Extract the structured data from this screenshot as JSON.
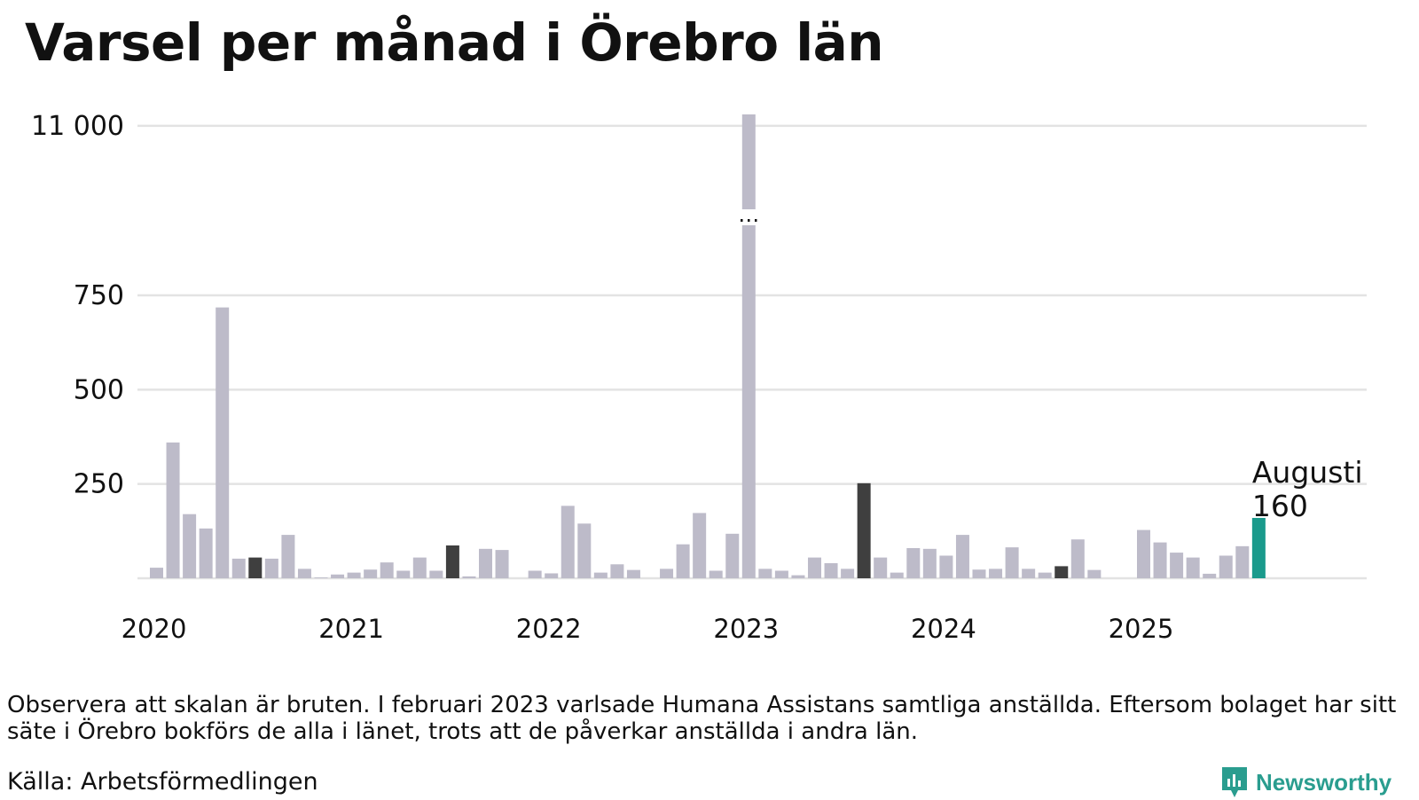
{
  "title": "Varsel per månad i Örebro län",
  "note": "Observera att skalan är bruten. I februari 2023 varlsade Humana Assistans samtliga anställda. Eftersom bolaget har sitt säte i Örebro bokförs de alla i länet, trots att de påverkar anställda i andra län.",
  "source": "Källa: Arbetsförmedlingen",
  "brand": "Newsworthy",
  "colors": {
    "bar": "#bdbbc9",
    "highlight": "#3f3f3f",
    "accent": "#1a9a8c",
    "grid": "#e3e3e3"
  },
  "chart_data": {
    "type": "bar",
    "broken_axis": true,
    "break_marker": "…",
    "y_ticks": [
      {
        "value": 250,
        "label": "250"
      },
      {
        "value": 500,
        "label": "500"
      },
      {
        "value": 750,
        "label": "750"
      },
      {
        "value": 11000,
        "label": "11 000"
      }
    ],
    "x_ticks": [
      {
        "index": 0,
        "label": "2020"
      },
      {
        "index": 12,
        "label": "2021"
      },
      {
        "index": 24,
        "label": "2022"
      },
      {
        "index": 36,
        "label": "2023"
      },
      {
        "index": 48,
        "label": "2024"
      },
      {
        "index": 60,
        "label": "2025"
      }
    ],
    "start": "2020-01",
    "values": [
      28,
      360,
      170,
      132,
      718,
      52,
      55,
      52,
      115,
      25,
      2,
      10,
      15,
      23,
      42,
      20,
      55,
      20,
      87,
      5,
      78,
      75,
      0,
      20,
      13,
      192,
      145,
      15,
      37,
      22,
      0,
      25,
      90,
      173,
      20,
      118,
      11000,
      25,
      20,
      8,
      55,
      40,
      25,
      252,
      55,
      15,
      80,
      78,
      60,
      115,
      23,
      25,
      82,
      25,
      15,
      32,
      103,
      22,
      0,
      0,
      128,
      95,
      68,
      55,
      12,
      60,
      85,
      160
    ],
    "highlighted_indices": [
      6,
      18,
      43,
      55
    ],
    "current_index": 67,
    "annotation": {
      "label": "Augusti",
      "value": "160"
    }
  }
}
